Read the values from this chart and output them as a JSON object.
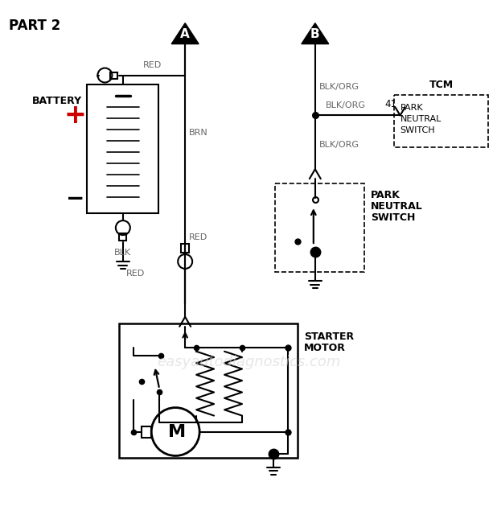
{
  "bg": "#ffffff",
  "lc": "#000000",
  "gc": "#666666",
  "rc": "#cc0000",
  "figsize": [
    6.18,
    6.5
  ],
  "dpi": 100,
  "part2": "PART 2",
  "battery_label": "BATTERY",
  "plus": "+",
  "minus": "−",
  "red1": "RED",
  "brn": "BRN",
  "red2": "RED",
  "blk": "BLK",
  "red3": "RED",
  "blkorg1": "BLK/ORG",
  "blkorg2": "BLK/ORG",
  "blkorg3": "BLK/ORG",
  "pin41": "41",
  "tcm": "TCM",
  "tcm1": "PARK",
  "tcm2": "NEUTRAL",
  "tcm3": "SWITCH",
  "pns1": "PARK",
  "pns2": "NEUTRAL",
  "pns3": "SWITCH",
  "sm1": "STARTER",
  "sm2": "MOTOR",
  "motor_m": "M",
  "A": "A",
  "B": "B",
  "watermark": "easyautodiagnostics.com"
}
